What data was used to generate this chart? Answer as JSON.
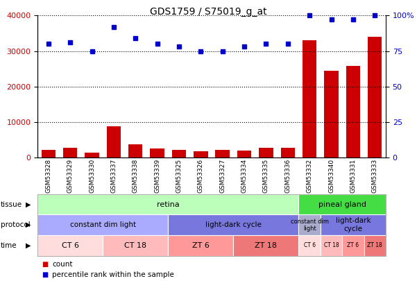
{
  "title": "GDS1759 / S75019_g_at",
  "samples": [
    "GSM53328",
    "GSM53329",
    "GSM53330",
    "GSM53337",
    "GSM53338",
    "GSM53339",
    "GSM53325",
    "GSM53326",
    "GSM53327",
    "GSM53334",
    "GSM53335",
    "GSM53336",
    "GSM53332",
    "GSM53340",
    "GSM53331",
    "GSM53333"
  ],
  "counts": [
    2200,
    2800,
    1400,
    8800,
    3800,
    2500,
    2200,
    1700,
    2200,
    2000,
    2800,
    2800,
    33000,
    24500,
    25800,
    34000
  ],
  "percentiles": [
    80,
    81,
    75,
    92,
    84,
    80,
    78,
    75,
    75,
    78,
    80,
    80,
    100,
    97,
    97,
    100
  ],
  "ylim_left": [
    0,
    40000
  ],
  "ylim_right": [
    0,
    100
  ],
  "yticks_left": [
    0,
    10000,
    20000,
    30000,
    40000
  ],
  "yticks_right": [
    0,
    25,
    50,
    75,
    100
  ],
  "bar_color": "#cc0000",
  "dot_color": "#0000cc",
  "tissue_retina_color": "#bbffbb",
  "tissue_pineal_color": "#44dd44",
  "protocol_cdl_retina_color": "#aaaaff",
  "protocol_ldc_retina_color": "#7777dd",
  "protocol_cdl_pineal_color": "#aaaacc",
  "protocol_ldc_pineal_color": "#7777dd",
  "time_ct6_color": "#ffdddd",
  "time_ct18_color": "#ffbbbb",
  "time_zt6_color": "#ff9999",
  "time_zt18_color": "#ee7777",
  "tissue_groups": [
    {
      "label": "retina",
      "start": 0,
      "end": 12
    },
    {
      "label": "pineal gland",
      "start": 12,
      "end": 16
    }
  ],
  "protocol_groups": [
    {
      "label": "constant dim light",
      "start": 0,
      "end": 6,
      "color_key": "protocol_cdl_retina_color"
    },
    {
      "label": "light-dark cycle",
      "start": 6,
      "end": 12,
      "color_key": "protocol_ldc_retina_color"
    },
    {
      "label": "constant dim\nlight",
      "start": 12,
      "end": 13,
      "color_key": "protocol_cdl_pineal_color"
    },
    {
      "label": "light-dark\ncycle",
      "start": 13,
      "end": 16,
      "color_key": "protocol_ldc_pineal_color"
    }
  ],
  "time_groups": [
    {
      "label": "CT 6",
      "start": 0,
      "end": 3,
      "color_key": "time_ct6_color"
    },
    {
      "label": "CT 18",
      "start": 3,
      "end": 6,
      "color_key": "time_ct18_color"
    },
    {
      "label": "ZT 6",
      "start": 6,
      "end": 9,
      "color_key": "time_zt6_color"
    },
    {
      "label": "ZT 18",
      "start": 9,
      "end": 12,
      "color_key": "time_zt18_color"
    },
    {
      "label": "CT 6",
      "start": 12,
      "end": 13,
      "color_key": "time_ct6_color"
    },
    {
      "label": "CT 18",
      "start": 13,
      "end": 14,
      "color_key": "time_ct18_color"
    },
    {
      "label": "ZT 6",
      "start": 14,
      "end": 15,
      "color_key": "time_zt6_color"
    },
    {
      "label": "ZT 18",
      "start": 15,
      "end": 16,
      "color_key": "time_zt18_color"
    }
  ]
}
